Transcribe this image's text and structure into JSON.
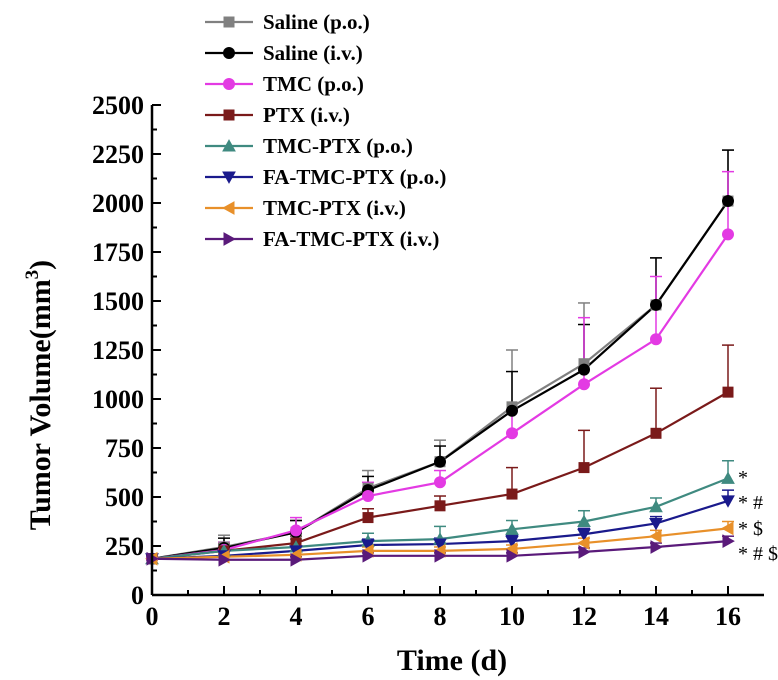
{
  "chart_data": {
    "type": "line",
    "xlabel": "Time (d)",
    "ylabel": "Tumor Volume(mm",
    "ylabel_sup": "3",
    "ylabel_close": ")",
    "xlim": [
      0,
      17
    ],
    "ylim": [
      0,
      2500
    ],
    "x_ticks": [
      0,
      2,
      4,
      6,
      8,
      10,
      12,
      14,
      16
    ],
    "y_ticks": [
      0,
      250,
      500,
      750,
      1000,
      1250,
      1500,
      1750,
      2000,
      2250,
      2500
    ],
    "x": [
      0,
      2,
      4,
      6,
      8,
      10,
      12,
      14,
      16
    ],
    "legend_position": "top-left",
    "grid": false,
    "series": [
      {
        "name": "Saline (p.o.)",
        "color": "#808080",
        "marker": "square",
        "values": [
          185,
          245,
          320,
          545,
          680,
          960,
          1180,
          1480,
          2010
        ],
        "errors": [
          20,
          60,
          60,
          90,
          110,
          290,
          310,
          240,
          260
        ]
      },
      {
        "name": "Saline (i.v.)",
        "color": "#000000",
        "marker": "circle",
        "values": [
          185,
          240,
          320,
          535,
          680,
          940,
          1150,
          1480,
          2010
        ],
        "errors": [
          20,
          50,
          60,
          70,
          80,
          200,
          230,
          240,
          260
        ]
      },
      {
        "name": "TMC (p.o.)",
        "color": "#e33ae3",
        "marker": "circle",
        "values": [
          185,
          230,
          330,
          505,
          575,
          825,
          1075,
          1305,
          1840
        ],
        "errors": [
          20,
          40,
          65,
          70,
          60,
          120,
          340,
          320,
          320
        ]
      },
      {
        "name": "PTX (i.v.)",
        "color": "#7a1a1a",
        "marker": "square",
        "values": [
          185,
          225,
          265,
          395,
          455,
          515,
          650,
          825,
          1035
        ],
        "errors": [
          20,
          35,
          35,
          45,
          50,
          135,
          190,
          230,
          240
        ]
      },
      {
        "name": "TMC-PTX (p.o.)",
        "color": "#3f8a80",
        "marker": "triangle-up",
        "values": [
          185,
          225,
          245,
          275,
          285,
          335,
          375,
          450,
          595
        ],
        "errors": [
          20,
          30,
          40,
          40,
          65,
          45,
          55,
          45,
          90
        ]
      },
      {
        "name": "FA-TMC-PTX (p.o.)",
        "color": "#1a1a8c",
        "marker": "triangle-down",
        "values": [
          185,
          200,
          225,
          255,
          260,
          275,
          310,
          365,
          480
        ],
        "errors": [
          15,
          20,
          25,
          30,
          30,
          30,
          30,
          35,
          55
        ]
      },
      {
        "name": "TMC-PTX (i.v.)",
        "color": "#e8902a",
        "marker": "triangle-left",
        "values": [
          185,
          195,
          205,
          225,
          225,
          235,
          265,
          300,
          340
        ],
        "errors": [
          15,
          15,
          20,
          20,
          20,
          20,
          25,
          30,
          35
        ]
      },
      {
        "name": "FA-TMC-PTX (i.v.)",
        "color": "#5a1a7a",
        "marker": "triangle-right",
        "values": [
          185,
          180,
          180,
          200,
          200,
          200,
          220,
          245,
          275
        ],
        "errors": [
          15,
          15,
          15,
          15,
          15,
          15,
          20,
          20,
          25
        ]
      }
    ],
    "annotations": [
      "*",
      "*#",
      "*$",
      "*#$"
    ]
  }
}
